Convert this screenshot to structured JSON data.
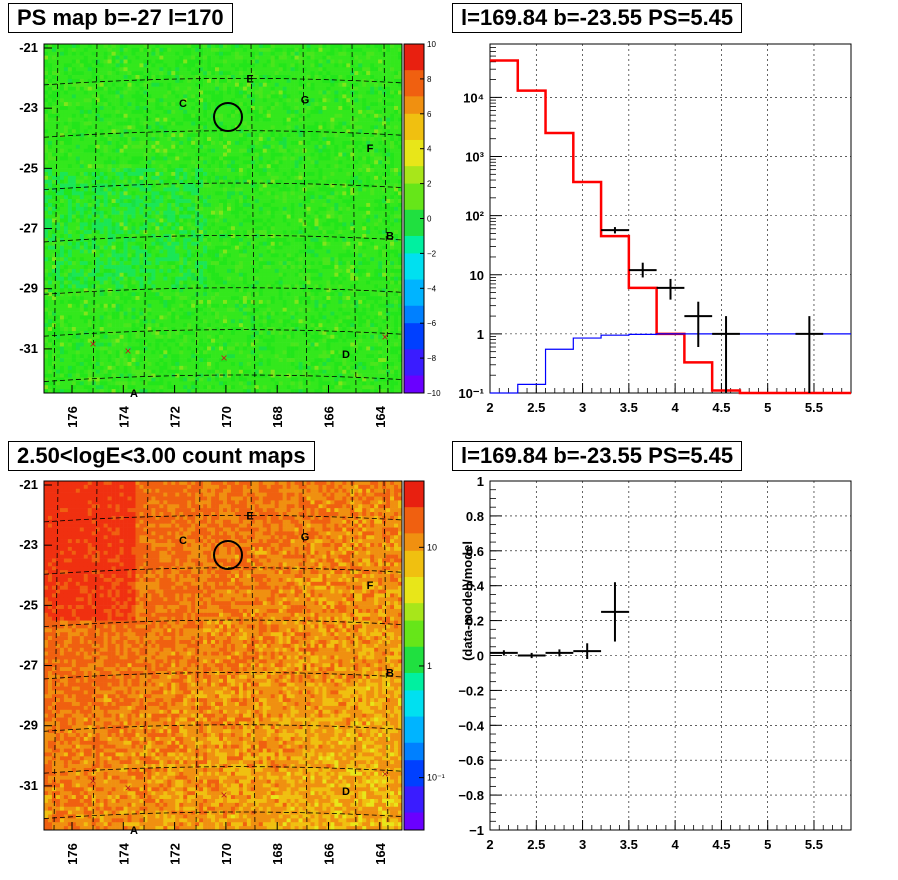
{
  "panels": {
    "ps_map": {
      "title": "PS map b=-27 l=170",
      "y_ticks": [
        "-21",
        "-23",
        "-25",
        "-27",
        "-29",
        "-31"
      ],
      "x_ticks": [
        "176",
        "174",
        "172",
        "170",
        "168",
        "166",
        "164"
      ],
      "colorbar_ticks": [
        "10",
        "8",
        "6",
        "4",
        "2",
        "0",
        "−2",
        "−4",
        "−6",
        "−8",
        "−10"
      ],
      "source_labels": [
        "A",
        "B",
        "C",
        "D",
        "E",
        "F",
        "G"
      ],
      "colors": {
        "colorscale": "rainbow",
        "map_bg": "#22e61a"
      }
    },
    "count_map": {
      "title": "2.50<logE<3.00 count maps",
      "y_ticks": [
        "-21",
        "-23",
        "-25",
        "-27",
        "-29",
        "-31"
      ],
      "x_ticks": [
        "176",
        "174",
        "172",
        "170",
        "168",
        "166",
        "164"
      ],
      "colorbar_ticks": [
        "10",
        "1",
        "10⁻¹"
      ],
      "source_labels": [
        "A",
        "B",
        "C",
        "D",
        "E",
        "F",
        "G"
      ],
      "colors": {
        "map_bg": "#f06a12"
      }
    }
  },
  "chart_data": [
    {
      "type": "histogram",
      "title": "l=169.84 b=-23.55 PS=5.45",
      "xlim": [
        2,
        5.9
      ],
      "ylim": [
        0.1,
        80000
      ],
      "yscale": "log",
      "grid": true,
      "x_tick_labels": [
        "2",
        "2.5",
        "3",
        "3.5",
        "4",
        "4.5",
        "5",
        "5.5"
      ],
      "y_tick_labels": [
        "10⁻¹",
        "1",
        "10",
        "10²",
        "10³",
        "10⁴"
      ],
      "series": [
        {
          "color": "#ff0000",
          "edges": [
            2.0,
            2.3,
            2.6,
            2.9,
            3.2,
            3.5,
            3.8,
            4.1,
            4.4,
            4.7,
            5.0,
            5.3,
            5.6,
            5.9
          ],
          "values": [
            42000,
            13000,
            2500,
            370,
            45,
            6,
            1,
            0.33,
            0.11,
            0.1,
            0.1,
            0.1,
            0.1
          ]
        },
        {
          "color": "#0000ff",
          "edges": [
            2.0,
            2.3,
            2.6,
            2.9,
            3.2,
            3.5,
            3.8,
            4.1,
            4.4,
            4.7,
            5.0,
            5.3,
            5.6,
            5.9
          ],
          "values": [
            0.1,
            0.14,
            0.55,
            0.85,
            0.95,
            0.98,
            1,
            1,
            1,
            1,
            1,
            1,
            1
          ]
        }
      ],
      "points": [
        {
          "x": 3.35,
          "y": 57,
          "xerr": 0.15,
          "ylo": 50,
          "yhi": 64
        },
        {
          "x": 3.65,
          "y": 12,
          "xerr": 0.15,
          "ylo": 9,
          "yhi": 16
        },
        {
          "x": 3.95,
          "y": 6,
          "xerr": 0.15,
          "ylo": 3.8,
          "yhi": 8.5
        },
        {
          "x": 4.25,
          "y": 2,
          "xerr": 0.15,
          "ylo": 0.6,
          "yhi": 3.5
        },
        {
          "x": 4.55,
          "y": 1,
          "xerr": 0.15,
          "ylo": 0.1,
          "yhi": 2
        },
        {
          "x": 5.45,
          "y": 1,
          "xerr": 0.15,
          "ylo": 0.1,
          "yhi": 2
        }
      ]
    },
    {
      "type": "scatter",
      "title": "l=169.84 b=-23.55 PS=5.45",
      "ylabel": "(data-model)/model",
      "xlim": [
        2,
        5.9
      ],
      "ylim": [
        -1,
        1
      ],
      "grid": true,
      "x_tick_labels": [
        "2",
        "2.5",
        "3",
        "3.5",
        "4",
        "4.5",
        "5",
        "5.5"
      ],
      "y_tick_labels": [
        "−1",
        "−0.8",
        "−0.6",
        "−0.4",
        "−0.2",
        "0",
        "0.2",
        "0.4",
        "0.6",
        "0.8",
        "1"
      ],
      "points": [
        {
          "x": 2.15,
          "y": 0.015,
          "xerr": 0.15,
          "yerr": 0.015
        },
        {
          "x": 2.45,
          "y": 0.0,
          "xerr": 0.15,
          "yerr": 0.015
        },
        {
          "x": 2.75,
          "y": 0.015,
          "xerr": 0.15,
          "yerr": 0.02
        },
        {
          "x": 3.05,
          "y": 0.025,
          "xerr": 0.15,
          "yerr": 0.045
        },
        {
          "x": 3.35,
          "y": 0.25,
          "xerr": 0.15,
          "yerr": 0.17
        }
      ]
    }
  ]
}
